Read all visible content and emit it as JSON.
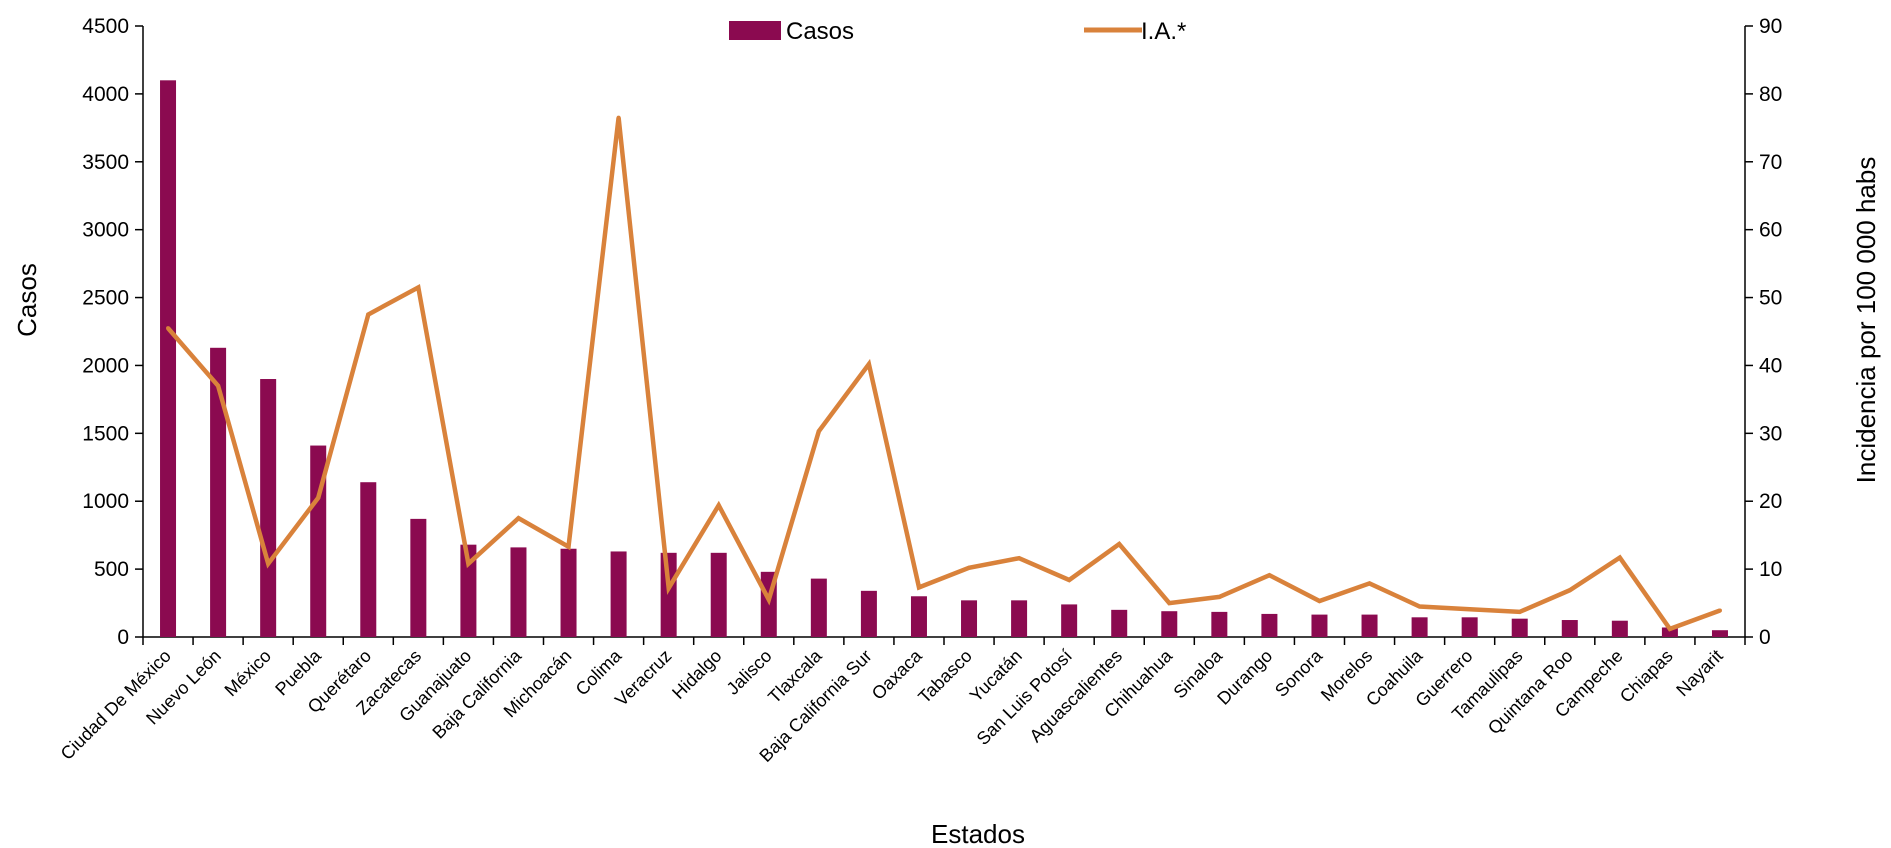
{
  "colors": {
    "bars": "#8b0a50",
    "line": "#d9823b",
    "axis": "#000000"
  },
  "chart_data": {
    "type": "bar",
    "categories": [
      "Ciudad De México",
      "Nuevo León",
      "México",
      "Puebla",
      "Querétaro",
      "Zacatecas",
      "Guanajuato",
      "Baja California",
      "Michoacán",
      "Colima",
      "Veracruz",
      "Hidalgo",
      "Jalisco",
      "Tlaxcala",
      "Baja California Sur",
      "Oaxaca",
      "Tabasco",
      "Yucatán",
      "San Luis Potosí",
      "Aguascalientes",
      "Chihuahua",
      "Sinaloa",
      "Durango",
      "Sonora",
      "Morelos",
      "Coahuila",
      "Guerrero",
      "Tamaulipas",
      "Quintana Roo",
      "Campeche",
      "Chiapas",
      "Nayarit"
    ],
    "series": [
      {
        "name": "Casos",
        "type": "bar",
        "axis": "left",
        "values": [
          4100,
          2130,
          1900,
          1410,
          1140,
          870,
          680,
          660,
          650,
          630,
          620,
          620,
          480,
          430,
          340,
          300,
          270,
          270,
          240,
          200,
          190,
          185,
          170,
          165,
          165,
          145,
          145,
          135,
          125,
          120,
          70,
          50
        ]
      },
      {
        "name": "I.A.*",
        "type": "line",
        "axis": "right",
        "values": [
          45.5,
          37,
          10.8,
          20.5,
          47.5,
          51.5,
          10.8,
          17.5,
          13.3,
          76.5,
          7.2,
          19.4,
          5.5,
          30.3,
          40.2,
          7.3,
          10.2,
          11.6,
          8.4,
          13.7,
          5.0,
          5.9,
          9.1,
          5.3,
          7.9,
          4.5,
          4.1,
          3.7,
          6.9,
          11.7,
          1.2,
          3.9
        ]
      }
    ],
    "xlabel": "Estados",
    "ylabel": "Casos",
    "y2label": "Incidencia por 100 000 habs",
    "ylim": [
      0,
      4500
    ],
    "y2lim": [
      0,
      90
    ],
    "yticks": [
      0,
      500,
      1000,
      1500,
      2000,
      2500,
      3000,
      3500,
      4000,
      4500
    ],
    "y2ticks": [
      0,
      10,
      20,
      30,
      40,
      50,
      60,
      70,
      80,
      90
    ],
    "grid": false,
    "legend": "top-center"
  }
}
